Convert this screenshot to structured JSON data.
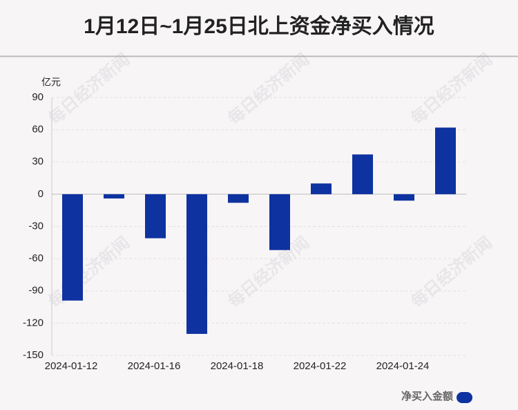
{
  "chart_data": {
    "type": "bar",
    "title": "1月12日~1月25日北上资金净买入情况",
    "y_unit": "亿元",
    "watermark": "每日经济新闻",
    "categories": [
      "2024-01-12",
      null,
      "2024-01-16",
      null,
      "2024-01-18",
      null,
      "2024-01-22",
      null,
      "2024-01-24",
      null
    ],
    "series": [
      {
        "name": "净买入金额",
        "color": "#0e32a0",
        "values": [
          -99,
          -4,
          -41,
          -130,
          -8,
          -52,
          10,
          37,
          -6,
          62
        ]
      }
    ],
    "ylim": [
      -150,
      90
    ],
    "yticks": [
      -150,
      -120,
      -90,
      -60,
      -30,
      0,
      30,
      60,
      90
    ],
    "grid": true
  }
}
